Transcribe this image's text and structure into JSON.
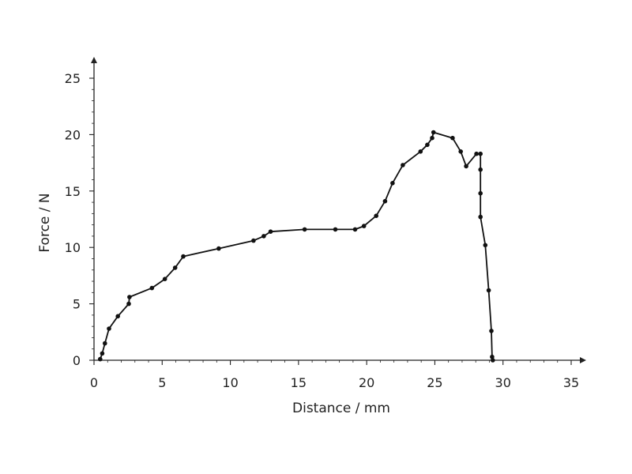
{
  "chart_data": {
    "type": "line",
    "title": "",
    "xlabel": "Distance / mm",
    "ylabel": "Force / N",
    "xlim": [
      0,
      35
    ],
    "ylim": [
      0,
      25
    ],
    "xticks": [
      0,
      5,
      10,
      15,
      20,
      25,
      30,
      35
    ],
    "yticks": [
      0,
      5,
      10,
      15,
      20,
      25
    ],
    "xtick_labels": [
      "0",
      "5",
      "10",
      "15",
      "20",
      "25",
      "30",
      "35"
    ],
    "ytick_labels": [
      "0",
      "5",
      "10",
      "15",
      "20",
      "25"
    ],
    "grid": false,
    "legend": "none",
    "series": [
      {
        "color": "#111111",
        "marker": "circle",
        "x": [
          0.45,
          0.6,
          0.8,
          1.1,
          1.75,
          2.55,
          2.6,
          4.25,
          5.2,
          5.95,
          6.55,
          9.15,
          11.7,
          12.45,
          12.95,
          15.45,
          17.7,
          19.15,
          19.8,
          20.7,
          21.35,
          21.9,
          22.65,
          23.95,
          24.45,
          24.8,
          24.9,
          26.3,
          26.9,
          27.3,
          28.05,
          28.35,
          28.35,
          28.35,
          28.35,
          28.7,
          28.95,
          29.15,
          29.2,
          29.25
        ],
        "y": [
          0.1,
          0.6,
          1.5,
          2.8,
          3.9,
          5.0,
          5.6,
          6.4,
          7.2,
          8.2,
          9.2,
          9.9,
          10.6,
          11.0,
          11.4,
          11.6,
          11.6,
          11.6,
          11.9,
          12.8,
          14.1,
          15.7,
          17.3,
          18.5,
          19.1,
          19.7,
          20.2,
          19.7,
          18.5,
          17.2,
          18.3,
          18.3,
          16.9,
          14.8,
          12.7,
          10.2,
          6.2,
          2.6,
          0.3,
          0.0
        ]
      }
    ]
  }
}
